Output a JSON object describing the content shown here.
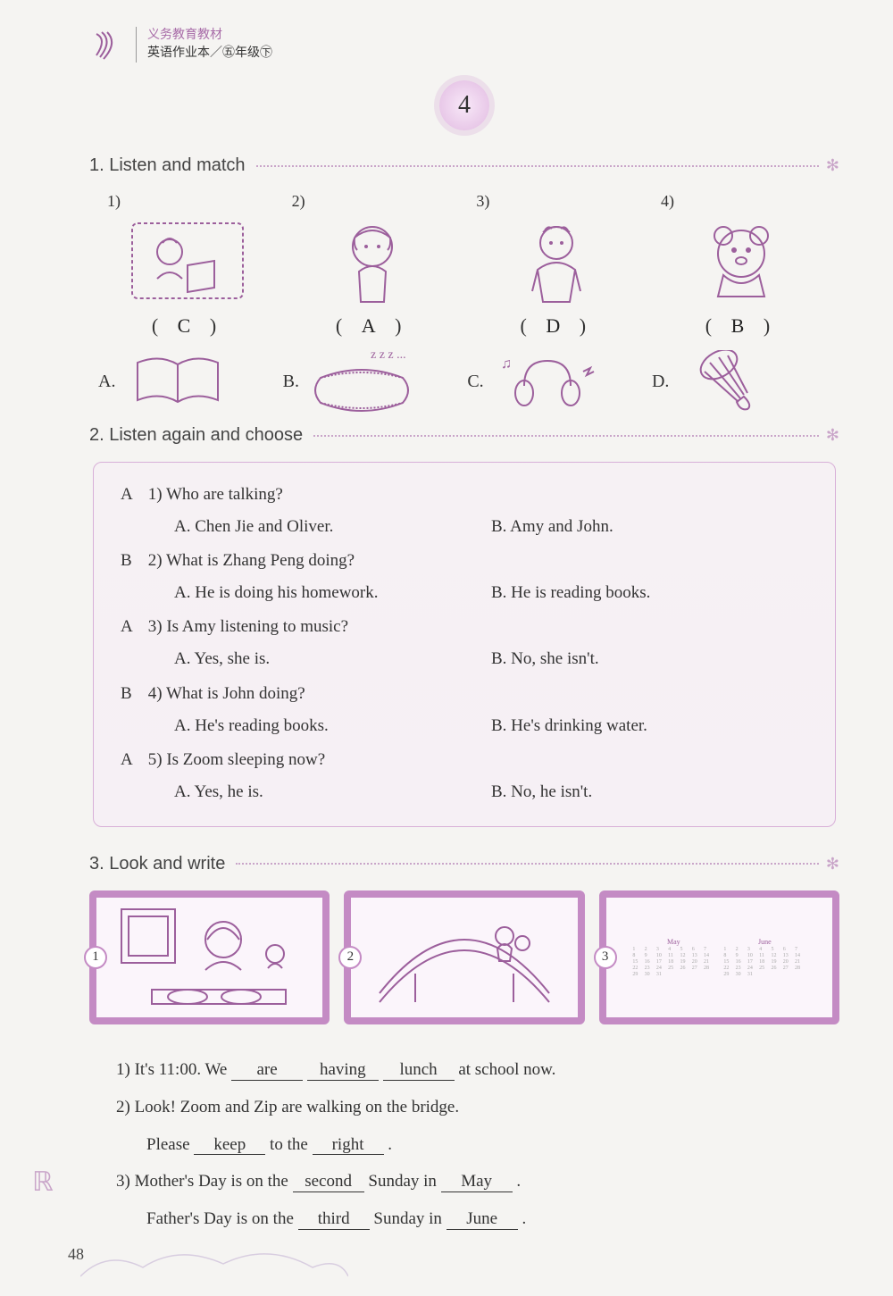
{
  "header": {
    "line1": "义务教育教材",
    "line2": "英语作业本／㊄年级㊦"
  },
  "unit_number": "4",
  "sections": {
    "s1": {
      "title": "1. Listen and match"
    },
    "s2": {
      "title": "2. Listen again and choose"
    },
    "s3": {
      "title": "3. Look and write"
    }
  },
  "match": {
    "items": [
      {
        "num": "1)",
        "answer": "C"
      },
      {
        "num": "2)",
        "answer": "A"
      },
      {
        "num": "3)",
        "answer": "D"
      },
      {
        "num": "4)",
        "answer": "B"
      }
    ],
    "options": [
      {
        "letter": "A."
      },
      {
        "letter": "B."
      },
      {
        "letter": "C."
      },
      {
        "letter": "D."
      }
    ]
  },
  "q2": [
    {
      "ans": "A",
      "num": "1)",
      "q": "Who are talking?",
      "a": "A.  Chen Jie and Oliver.",
      "b": "B.  Amy and John."
    },
    {
      "ans": "B",
      "num": "2)",
      "q": "What is Zhang Peng doing?",
      "a": "A.  He is doing his homework.",
      "b": "B.  He is reading books."
    },
    {
      "ans": "A",
      "num": "3)",
      "q": "Is Amy listening to music?",
      "a": "A.  Yes, she is.",
      "b": "B.  No, she isn't."
    },
    {
      "ans": "B",
      "num": "4)",
      "q": "What is John doing?",
      "a": "A.  He's reading books.",
      "b": "B.  He's drinking water."
    },
    {
      "ans": "A",
      "num": "5)",
      "q": "Is Zoom sleeping now?",
      "a": "A.  Yes, he is.",
      "b": "B.  No, he isn't."
    }
  ],
  "fill": {
    "line1_pre": "1)  It's 11:00. We ",
    "b1": "are",
    "b2": "having",
    "b3": "lunch",
    "line1_post": " at school now.",
    "line2": "2)  Look! Zoom and Zip are walking on the bridge.",
    "line2b_pre": "Please ",
    "b4": "keep",
    "mid": " to the ",
    "b5": "right",
    "line2b_post": ".",
    "line3_pre": "3)  Mother's Day is on the ",
    "b6": "second",
    "mid3": " Sunday in ",
    "b7": "May",
    "line3_post": ".",
    "line4_pre": "Father's Day is on the ",
    "b8": "third",
    "mid4": " Sunday in ",
    "b9": "June",
    "line4_post": "."
  },
  "pic_badges": [
    "1",
    "2",
    "3"
  ],
  "calendar": {
    "left_month": "May",
    "right_month": "June"
  },
  "page_number": "48",
  "colors": {
    "accent": "#c48bc4",
    "accent_light": "#e8c8e8",
    "text": "#333333",
    "bg": "#f5f4f2"
  }
}
